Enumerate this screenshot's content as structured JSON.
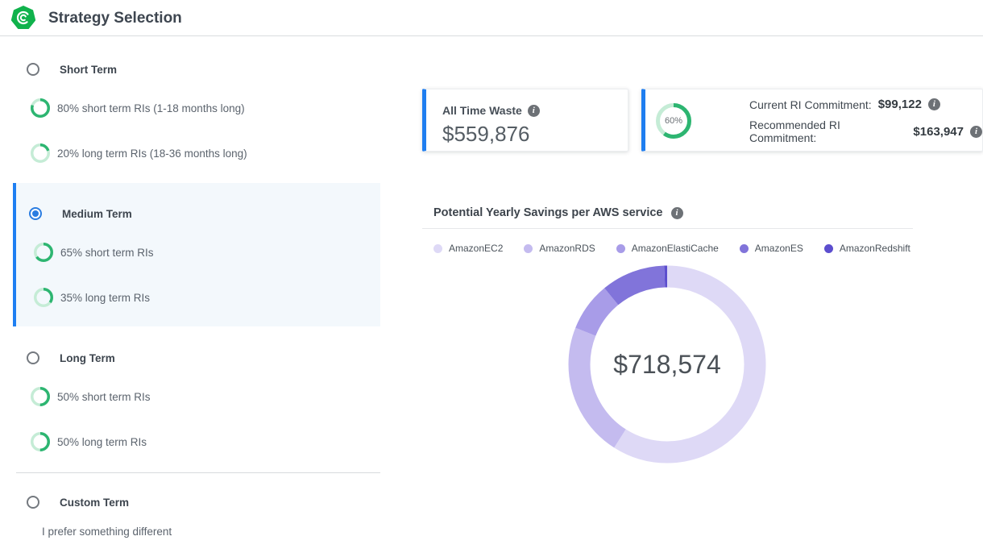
{
  "header": {
    "title": "Strategy Selection"
  },
  "sidebar": {
    "groups": [
      {
        "label": "Short Term",
        "selected": false,
        "options": [
          {
            "percent": 80,
            "label": "80% short term RIs (1-18 months long)"
          },
          {
            "percent": 20,
            "label": "20% long term RIs (18-36 months long)"
          }
        ]
      },
      {
        "label": "Medium Term",
        "selected": true,
        "options": [
          {
            "percent": 65,
            "label": "65% short term RIs"
          },
          {
            "percent": 35,
            "label": "35% long term RIs"
          }
        ]
      },
      {
        "label": "Long Term",
        "selected": false,
        "options": [
          {
            "percent": 50,
            "label": "50% short term RIs"
          },
          {
            "percent": 50,
            "label": "50% long term RIs"
          }
        ]
      },
      {
        "label": "Custom Term",
        "selected": false,
        "description": "I prefer something different"
      }
    ]
  },
  "cards": {
    "waste": {
      "label": "All Time Waste",
      "value": "$559,876"
    },
    "commitment": {
      "percent": 60,
      "percent_label": "60%",
      "current_label": "Current RI Commitment:",
      "current_value": "$99,122",
      "recommended_label": "Recommended RI Commitment:",
      "recommended_value": "$163,947"
    }
  },
  "chart": {
    "title": "Potential Yearly Savings per AWS service"
  },
  "chart_data": {
    "type": "pie",
    "subtype": "donut",
    "title": "Potential Yearly Savings per AWS service",
    "center_total": "$718,574",
    "labels": [
      "AmazonEC2",
      "AmazonRDS",
      "AmazonElastiCache",
      "AmazonES",
      "AmazonRedshift"
    ],
    "values_percent": [
      59,
      22,
      8,
      10.5,
      0.5
    ],
    "colors": [
      "#ded9f6",
      "#c4bbef",
      "#a89ce8",
      "#8174da",
      "#5c4ece"
    ],
    "legend_position": "top",
    "start_angle_deg": 0,
    "direction": "clockwise"
  },
  "theme": {
    "accent_blue": "#1e7ff2",
    "ring_green": "#2db571",
    "ring_green_light": "#c5ecd6",
    "logo_green": "#10b24c"
  }
}
